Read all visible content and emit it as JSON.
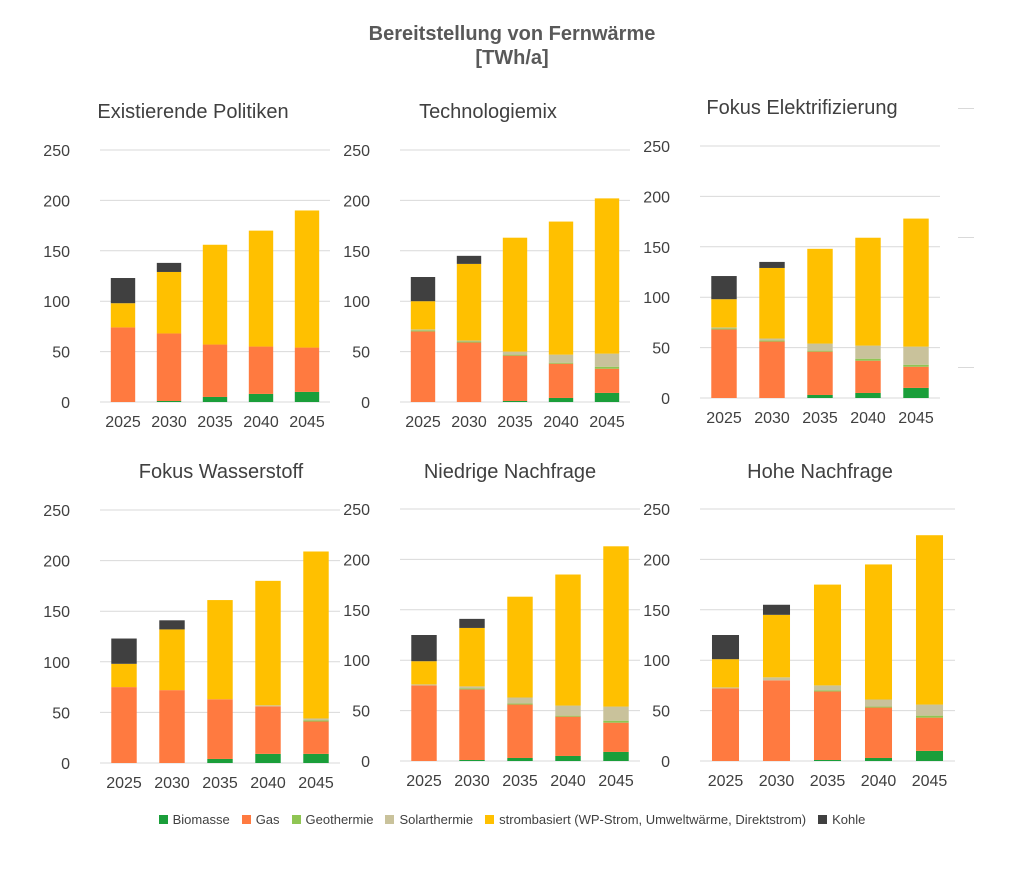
{
  "title": {
    "line1": "Bereitstellung von Fernwärme",
    "line2": "[TWh/a]"
  },
  "chart_data": [
    {
      "type": "bar",
      "stacked": true,
      "title": "Existierende Politiken",
      "categories": [
        "2025",
        "2030",
        "2035",
        "2040",
        "2045"
      ],
      "yticks": [
        "0",
        "50",
        "100",
        "150",
        "200",
        "250"
      ],
      "ylim": [
        0,
        250
      ],
      "series": [
        {
          "name": "Biomasse",
          "values": [
            0,
            1,
            5,
            8,
            10
          ]
        },
        {
          "name": "Gas",
          "values": [
            74,
            67,
            52,
            47,
            44
          ]
        },
        {
          "name": "Geothermie",
          "values": [
            0,
            0,
            0,
            0,
            0
          ]
        },
        {
          "name": "Solarthermie",
          "values": [
            0,
            0,
            0,
            0,
            0
          ]
        },
        {
          "name": "strombasiert (WP-Strom, Umweltwärme, Direktstrom)",
          "values": [
            24,
            61,
            99,
            115,
            136
          ]
        },
        {
          "name": "Kohle",
          "values": [
            25,
            9,
            0,
            0,
            0
          ]
        }
      ]
    },
    {
      "type": "bar",
      "stacked": true,
      "title": "Technologiemix",
      "categories": [
        "2025",
        "2030",
        "2035",
        "2040",
        "2045"
      ],
      "yticks": [
        "0",
        "50",
        "100",
        "150",
        "200",
        "250"
      ],
      "ylim": [
        0,
        250
      ],
      "series": [
        {
          "name": "Biomasse",
          "values": [
            0,
            0,
            1,
            4,
            9
          ]
        },
        {
          "name": "Gas",
          "values": [
            70,
            59,
            45,
            34,
            24
          ]
        },
        {
          "name": "Geothermie",
          "values": [
            1,
            1,
            1,
            1,
            2
          ]
        },
        {
          "name": "Solarthermie",
          "values": [
            1,
            1,
            3,
            8,
            13
          ]
        },
        {
          "name": "strombasiert (WP-Strom, Umweltwärme, Direktstrom)",
          "values": [
            28,
            76,
            113,
            132,
            154
          ]
        },
        {
          "name": "Kohle",
          "values": [
            24,
            8,
            0,
            0,
            0
          ]
        }
      ]
    },
    {
      "type": "bar",
      "stacked": true,
      "title": "Fokus Elektrifizierung",
      "categories": [
        "2025",
        "2030",
        "2035",
        "2040",
        "2045"
      ],
      "yticks": [
        "0",
        "50",
        "100",
        "150",
        "200",
        "250"
      ],
      "ylim": [
        0,
        250
      ],
      "series": [
        {
          "name": "Biomasse",
          "values": [
            0,
            0,
            3,
            5,
            10
          ]
        },
        {
          "name": "Gas",
          "values": [
            68,
            56,
            43,
            32,
            21
          ]
        },
        {
          "name": "Geothermie",
          "values": [
            1,
            1,
            1,
            2,
            2
          ]
        },
        {
          "name": "Solarthermie",
          "values": [
            1,
            2,
            7,
            13,
            18
          ]
        },
        {
          "name": "strombasiert (WP-Strom, Umweltwärme, Direktstrom)",
          "values": [
            28,
            70,
            94,
            107,
            127
          ]
        },
        {
          "name": "Kohle",
          "values": [
            23,
            6,
            0,
            0,
            0
          ]
        }
      ]
    },
    {
      "type": "bar",
      "stacked": true,
      "title": "Fokus Wasserstoff",
      "categories": [
        "2025",
        "2030",
        "2035",
        "2040",
        "2045"
      ],
      "yticks": [
        "0",
        "50",
        "100",
        "150",
        "200",
        "250"
      ],
      "ylim": [
        0,
        250
      ],
      "series": [
        {
          "name": "Biomasse",
          "values": [
            0,
            0,
            4,
            9,
            9
          ]
        },
        {
          "name": "Gas",
          "values": [
            75,
            72,
            59,
            47,
            32
          ]
        },
        {
          "name": "Geothermie",
          "values": [
            0,
            0,
            0,
            0,
            1
          ]
        },
        {
          "name": "Solarthermie",
          "values": [
            0,
            0,
            0,
            1,
            2
          ]
        },
        {
          "name": "strombasiert (WP-Strom, Umweltwärme, Direktstrom)",
          "values": [
            23,
            60,
            98,
            123,
            165
          ]
        },
        {
          "name": "Kohle",
          "values": [
            25,
            9,
            0,
            0,
            0
          ]
        }
      ]
    },
    {
      "type": "bar",
      "stacked": true,
      "title": "Niedrige Nachfrage",
      "categories": [
        "2025",
        "2030",
        "2035",
        "2040",
        "2045"
      ],
      "yticks": [
        "0",
        "50",
        "100",
        "150",
        "200",
        "250"
      ],
      "ylim": [
        0,
        250
      ],
      "series": [
        {
          "name": "Biomasse",
          "values": [
            0,
            1,
            3,
            5,
            9
          ]
        },
        {
          "name": "Gas",
          "values": [
            75,
            70,
            53,
            39,
            29
          ]
        },
        {
          "name": "Geothermie",
          "values": [
            0,
            1,
            1,
            1,
            2
          ]
        },
        {
          "name": "Solarthermie",
          "values": [
            1,
            2,
            6,
            10,
            14
          ]
        },
        {
          "name": "strombasiert (WP-Strom, Umweltwärme, Direktstrom)",
          "values": [
            23,
            58,
            100,
            130,
            159
          ]
        },
        {
          "name": "Kohle",
          "values": [
            26,
            9,
            0,
            0,
            0
          ]
        }
      ]
    },
    {
      "type": "bar",
      "stacked": true,
      "title": "Hohe Nachfrage",
      "categories": [
        "2025",
        "2030",
        "2035",
        "2040",
        "2045"
      ],
      "yticks": [
        "0",
        "50",
        "100",
        "150",
        "200",
        "250"
      ],
      "ylim": [
        0,
        250
      ],
      "series": [
        {
          "name": "Biomasse",
          "values": [
            0,
            0,
            1,
            3,
            10
          ]
        },
        {
          "name": "Gas",
          "values": [
            72,
            80,
            68,
            50,
            33
          ]
        },
        {
          "name": "Geothermie",
          "values": [
            0,
            0,
            1,
            1,
            2
          ]
        },
        {
          "name": "Solarthermie",
          "values": [
            1,
            3,
            5,
            7,
            11
          ]
        },
        {
          "name": "strombasiert (WP-Strom, Umweltwärme, Direktstrom)",
          "values": [
            28,
            62,
            100,
            134,
            168
          ]
        },
        {
          "name": "Kohle",
          "values": [
            24,
            10,
            0,
            0,
            0
          ]
        }
      ]
    }
  ],
  "legend": [
    {
      "label": "Biomasse",
      "color": "#1a9e3a"
    },
    {
      "label": "Gas",
      "color": "#ff7a40"
    },
    {
      "label": "Geothermie",
      "color": "#8fc553"
    },
    {
      "label": "Solarthermie",
      "color": "#c9c29b"
    },
    {
      "label": "strombasiert (WP-Strom, Umweltwärme, Direktstrom)",
      "color": "#ffc000"
    },
    {
      "label": "Kohle",
      "color": "#404040"
    }
  ]
}
